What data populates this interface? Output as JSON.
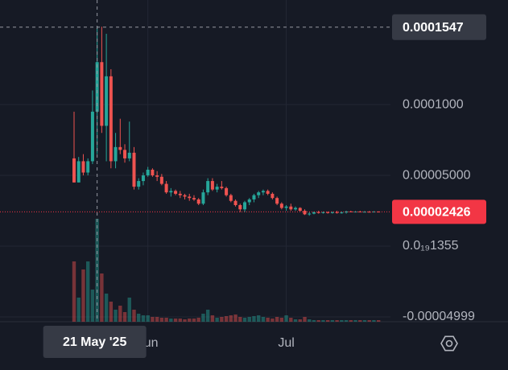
{
  "chart_data": {
    "type": "candlestick",
    "categories": [
      null,
      null,
      null,
      null,
      null,
      "21 May '25",
      null,
      null,
      null,
      null,
      null,
      null,
      null,
      null,
      null,
      null,
      "Jun",
      null,
      null,
      null,
      null,
      null,
      null,
      null,
      null,
      null,
      null,
      null,
      null,
      null,
      null,
      null,
      null,
      null,
      null,
      null,
      null,
      null,
      null,
      null,
      null,
      null,
      null,
      null,
      null,
      null,
      "Jul",
      null,
      null,
      null,
      null,
      null,
      null,
      null,
      null,
      null,
      null,
      null,
      null,
      null,
      null,
      null,
      null,
      null,
      null,
      null,
      null
    ],
    "open": [
      6.2e-05,
      4.5e-05,
      6e-05,
      5.2e-05,
      6e-05,
      9.5e-05,
      0.00013,
      8.5e-05,
      0.00012,
      6e-05,
      7e-05,
      6.8e-05,
      6.2e-05,
      6.6e-05,
      4.2e-05,
      4.6e-05,
      5e-05,
      5.4e-05,
      5e-05,
      4.9e-05,
      4.4e-05,
      3.8e-05,
      3.9e-05,
      3.7e-05,
      3.6e-05,
      3.5e-05,
      3.4e-05,
      3.3e-05,
      3e-05,
      3.8e-05,
      4.6e-05,
      4e-05,
      4.2e-05,
      4.1e-05,
      3.6e-05,
      3.2e-05,
      2.9e-05,
      2.6e-05,
      3.1e-05,
      3.3e-05,
      3.6e-05,
      3.8e-05,
      3.9e-05,
      3.7e-05,
      3.4e-05,
      3e-05,
      2.7e-05,
      2.8e-05,
      2.6e-05,
      2.7e-05,
      2.5e-05,
      2.25e-05,
      2.3e-05,
      2.4e-05,
      2.35e-05,
      2.4e-05,
      2.35e-05,
      2.4e-05,
      2.35e-05,
      2.38e-05,
      2.45e-05,
      2.42e-05,
      2.44e-05,
      2.42e-05,
      2.43e-05,
      2.42e-05,
      2.44e-05
    ],
    "high": [
      9.5e-05,
      6.3e-05,
      6.5e-05,
      6.2e-05,
      0.00011,
      0.000155,
      0.000155,
      0.00015,
      0.000125,
      8e-05,
      9e-05,
      7.2e-05,
      8.8e-05,
      7e-05,
      4.8e-05,
      5.2e-05,
      5.6e-05,
      5.5e-05,
      5.3e-05,
      5.1e-05,
      4.6e-05,
      4.1e-05,
      4e-05,
      3.9e-05,
      3.7e-05,
      3.7e-05,
      3.6e-05,
      3.4e-05,
      4e-05,
      4.8e-05,
      4.8e-05,
      4.4e-05,
      4.6e-05,
      4.2e-05,
      3.7e-05,
      3.3e-05,
      3e-05,
      3.2e-05,
      3.4e-05,
      3.7e-05,
      3.9e-05,
      4e-05,
      4e-05,
      3.8e-05,
      3.5e-05,
      3.1e-05,
      2.9e-05,
      3e-05,
      2.8e-05,
      2.75e-05,
      2.6e-05,
      2.4e-05,
      2.45e-05,
      2.5e-05,
      2.45e-05,
      2.45e-05,
      2.45e-05,
      2.5e-05,
      2.45e-05,
      2.5e-05,
      2.5e-05,
      2.48e-05,
      2.5e-05,
      2.48e-05,
      2.48e-05,
      2.47e-05,
      2.46e-05
    ],
    "low": [
      4.5e-05,
      4.5e-05,
      5e-05,
      5e-05,
      5.8e-05,
      6.5e-05,
      8e-05,
      6e-05,
      5.5e-05,
      5.5e-05,
      6.5e-05,
      5.9e-05,
      6e-05,
      4e-05,
      4e-05,
      4.3e-05,
      4.9e-05,
      4.9e-05,
      4.6e-05,
      4.3e-05,
      3.7e-05,
      3.5e-05,
      3.6e-05,
      3.4e-05,
      3.3e-05,
      3.2e-05,
      3.2e-05,
      2.9e-05,
      2.9e-05,
      3.6e-05,
      3.9e-05,
      3.8e-05,
      4e-05,
      3.5e-05,
      3.1e-05,
      2.8e-05,
      2.4e-05,
      2.4e-05,
      2.9e-05,
      3.1e-05,
      3.4e-05,
      3.6e-05,
      3.6e-05,
      3.3e-05,
      2.9e-05,
      2.6e-05,
      2.5e-05,
      2.5e-05,
      2.5e-05,
      2.45e-05,
      2.2e-05,
      2.15e-05,
      2.25e-05,
      2.3e-05,
      2.3e-05,
      2.3e-05,
      2.3e-05,
      2.3e-05,
      2.3e-05,
      2.3e-05,
      2.4e-05,
      2.38e-05,
      2.4e-05,
      2.4e-05,
      2.4e-05,
      2.4e-05,
      2.4e-05
    ],
    "close": [
      4.5e-05,
      6e-05,
      5.2e-05,
      6e-05,
      9.5e-05,
      0.00013,
      8.5e-05,
      0.00012,
      6e-05,
      7e-05,
      6.8e-05,
      6.2e-05,
      6.6e-05,
      4.2e-05,
      4.6e-05,
      5e-05,
      5.4e-05,
      5e-05,
      4.9e-05,
      4.4e-05,
      3.8e-05,
      3.9e-05,
      3.7e-05,
      3.6e-05,
      3.5e-05,
      3.4e-05,
      3.3e-05,
      3e-05,
      3.8e-05,
      4.6e-05,
      4e-05,
      4.2e-05,
      4.1e-05,
      3.6e-05,
      3.2e-05,
      2.9e-05,
      2.6e-05,
      3.1e-05,
      3.3e-05,
      3.6e-05,
      3.8e-05,
      3.9e-05,
      3.7e-05,
      3.4e-05,
      3e-05,
      2.7e-05,
      2.8e-05,
      2.6e-05,
      2.7e-05,
      2.5e-05,
      2.25e-05,
      2.3e-05,
      2.4e-05,
      2.35e-05,
      2.4e-05,
      2.35e-05,
      2.4e-05,
      2.35e-05,
      2.38e-05,
      2.45e-05,
      2.42e-05,
      2.44e-05,
      2.42e-05,
      2.43e-05,
      2.42e-05,
      2.44e-05,
      2.426e-05
    ],
    "volume": [
      75,
      30,
      65,
      75,
      40,
      128,
      60,
      35,
      25,
      15,
      20,
      12,
      30,
      15,
      10,
      8,
      8,
      6,
      6,
      5,
      5,
      4,
      4,
      4,
      3,
      4,
      4,
      5,
      10,
      15,
      8,
      5,
      6,
      7,
      8,
      9,
      6,
      5,
      6,
      7,
      8,
      6,
      5,
      4,
      6,
      5,
      8,
      5,
      3,
      3,
      6,
      3,
      2,
      2,
      2,
      2,
      2,
      2,
      2,
      2,
      2,
      2,
      2,
      2,
      2,
      2,
      2
    ],
    "up_color": "#26a69a",
    "down_color": "#ef5350",
    "ylim": [
      -5.34e-05,
      0.0001739
    ],
    "yticks": [
      {
        "value": 0.0001,
        "label": "0.0001000"
      },
      {
        "value": 5e-05,
        "label": "0.00005000"
      },
      {
        "value": 1.355e-19,
        "label": "0.0₁₉1355"
      },
      -4.999e-05
    ],
    "grid": true,
    "crosshair": {
      "category_index": 5,
      "price": 0.0001547
    },
    "last_price": 2.426e-05
  }
}
